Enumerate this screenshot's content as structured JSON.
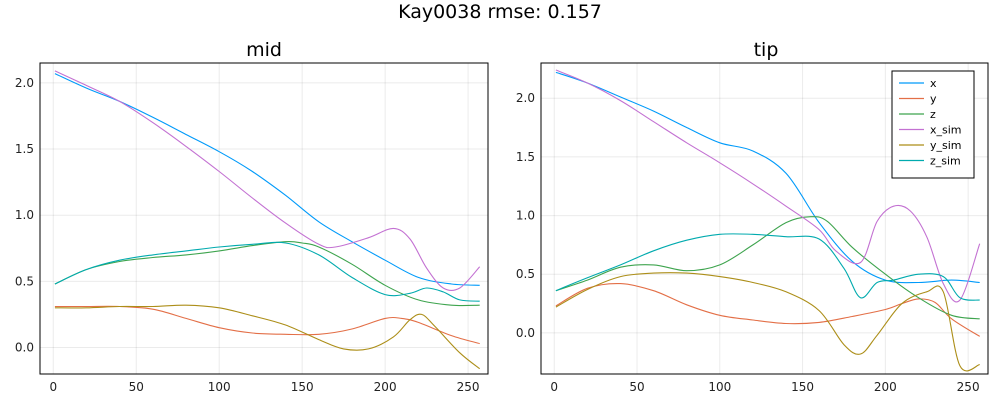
{
  "suptitle": "Kay0038 rmse: 0.157",
  "colors": {
    "x": "#009AFA",
    "y": "#E36F47",
    "z": "#3EA44E",
    "x_sim": "#C371D2",
    "y_sim": "#AC8E18",
    "z_sim": "#00AAAE"
  },
  "chart_data": [
    {
      "type": "line",
      "title": "mid",
      "xlabel": "",
      "ylabel": "",
      "xlim": [
        -8,
        262
      ],
      "ylim": [
        -0.2,
        2.15
      ],
      "xticks": [
        0,
        50,
        100,
        150,
        200,
        250
      ],
      "yticks": [
        0.0,
        0.5,
        1.0,
        1.5,
        2.0
      ],
      "ytick_labels": [
        "0.0",
        "0.5",
        "1.0",
        "1.5",
        "2.0"
      ],
      "grid": true,
      "legend": null,
      "series": [
        {
          "name": "x",
          "x": [
            1,
            20,
            40,
            60,
            80,
            100,
            120,
            140,
            160,
            180,
            200,
            220,
            240,
            257
          ],
          "y": [
            2.07,
            1.96,
            1.86,
            1.74,
            1.61,
            1.48,
            1.33,
            1.15,
            0.95,
            0.8,
            0.66,
            0.53,
            0.48,
            0.47
          ]
        },
        {
          "name": "y",
          "x": [
            1,
            20,
            40,
            60,
            80,
            100,
            120,
            140,
            160,
            180,
            200,
            210,
            220,
            240,
            257
          ],
          "y": [
            0.31,
            0.31,
            0.31,
            0.29,
            0.22,
            0.15,
            0.11,
            0.1,
            0.1,
            0.14,
            0.22,
            0.22,
            0.19,
            0.09,
            0.03
          ]
        },
        {
          "name": "z",
          "x": [
            1,
            20,
            40,
            60,
            80,
            100,
            120,
            140,
            150,
            160,
            180,
            200,
            220,
            240,
            257
          ],
          "y": [
            0.48,
            0.59,
            0.65,
            0.68,
            0.7,
            0.73,
            0.77,
            0.8,
            0.79,
            0.76,
            0.63,
            0.47,
            0.36,
            0.32,
            0.32
          ]
        },
        {
          "name": "x_sim",
          "x": [
            1,
            20,
            40,
            60,
            80,
            100,
            120,
            140,
            160,
            170,
            190,
            205,
            215,
            225,
            235,
            245,
            257
          ],
          "y": [
            2.09,
            1.98,
            1.86,
            1.7,
            1.52,
            1.33,
            1.13,
            0.94,
            0.78,
            0.76,
            0.83,
            0.9,
            0.82,
            0.6,
            0.45,
            0.45,
            0.61
          ]
        },
        {
          "name": "y_sim",
          "x": [
            1,
            20,
            40,
            60,
            80,
            100,
            120,
            140,
            160,
            175,
            190,
            205,
            215,
            222,
            230,
            245,
            257
          ],
          "y": [
            0.3,
            0.3,
            0.31,
            0.31,
            0.32,
            0.3,
            0.24,
            0.17,
            0.06,
            -0.01,
            -0.01,
            0.08,
            0.21,
            0.25,
            0.16,
            -0.04,
            -0.16
          ]
        },
        {
          "name": "z_sim",
          "x": [
            1,
            20,
            40,
            60,
            80,
            100,
            120,
            140,
            160,
            180,
            200,
            215,
            225,
            235,
            245,
            257
          ],
          "y": [
            0.48,
            0.59,
            0.66,
            0.7,
            0.73,
            0.76,
            0.78,
            0.79,
            0.7,
            0.53,
            0.4,
            0.41,
            0.45,
            0.42,
            0.36,
            0.35
          ]
        }
      ]
    },
    {
      "type": "line",
      "title": "tip",
      "xlabel": "",
      "ylabel": "",
      "xlim": [
        -8,
        262
      ],
      "ylim": [
        -0.35,
        2.3
      ],
      "xticks": [
        0,
        50,
        100,
        150,
        200,
        250
      ],
      "yticks": [
        0.0,
        0.5,
        1.0,
        1.5,
        2.0
      ],
      "ytick_labels": [
        "0.0",
        "0.5",
        "1.0",
        "1.5",
        "2.0"
      ],
      "grid": true,
      "legend": "top-right",
      "series": [
        {
          "name": "x",
          "x": [
            1,
            20,
            40,
            60,
            80,
            100,
            120,
            140,
            160,
            180,
            200,
            220,
            240,
            257
          ],
          "y": [
            2.22,
            2.13,
            2.01,
            1.89,
            1.75,
            1.62,
            1.55,
            1.36,
            0.94,
            0.61,
            0.45,
            0.43,
            0.45,
            0.43
          ]
        },
        {
          "name": "y",
          "x": [
            1,
            20,
            40,
            60,
            80,
            100,
            120,
            140,
            160,
            180,
            200,
            210,
            220,
            230,
            240,
            257
          ],
          "y": [
            0.23,
            0.38,
            0.42,
            0.36,
            0.24,
            0.15,
            0.11,
            0.08,
            0.09,
            0.14,
            0.2,
            0.25,
            0.29,
            0.26,
            0.12,
            -0.03
          ]
        },
        {
          "name": "z",
          "x": [
            1,
            20,
            40,
            60,
            80,
            100,
            120,
            140,
            155,
            165,
            180,
            200,
            220,
            240,
            257
          ],
          "y": [
            0.36,
            0.45,
            0.56,
            0.58,
            0.53,
            0.58,
            0.75,
            0.94,
            0.99,
            0.95,
            0.73,
            0.5,
            0.3,
            0.15,
            0.12
          ]
        },
        {
          "name": "x_sim",
          "x": [
            1,
            20,
            40,
            60,
            80,
            100,
            120,
            140,
            160,
            170,
            185,
            195,
            205,
            215,
            225,
            235,
            245,
            257
          ],
          "y": [
            2.24,
            2.13,
            1.98,
            1.8,
            1.62,
            1.45,
            1.27,
            1.08,
            0.88,
            0.7,
            0.6,
            0.95,
            1.08,
            1.04,
            0.82,
            0.42,
            0.28,
            0.76
          ]
        },
        {
          "name": "y_sim",
          "x": [
            1,
            20,
            40,
            60,
            80,
            100,
            120,
            140,
            160,
            175,
            185,
            195,
            210,
            225,
            235,
            245,
            257
          ],
          "y": [
            0.22,
            0.37,
            0.48,
            0.51,
            0.51,
            0.48,
            0.43,
            0.35,
            0.19,
            -0.1,
            -0.18,
            -0.02,
            0.25,
            0.35,
            0.35,
            -0.28,
            -0.27
          ]
        },
        {
          "name": "z_sim",
          "x": [
            1,
            20,
            40,
            60,
            80,
            100,
            120,
            140,
            160,
            175,
            185,
            195,
            205,
            220,
            235,
            245,
            257
          ],
          "y": [
            0.36,
            0.47,
            0.58,
            0.7,
            0.79,
            0.84,
            0.84,
            0.82,
            0.8,
            0.55,
            0.3,
            0.43,
            0.45,
            0.5,
            0.48,
            0.3,
            0.28
          ]
        }
      ]
    }
  ]
}
